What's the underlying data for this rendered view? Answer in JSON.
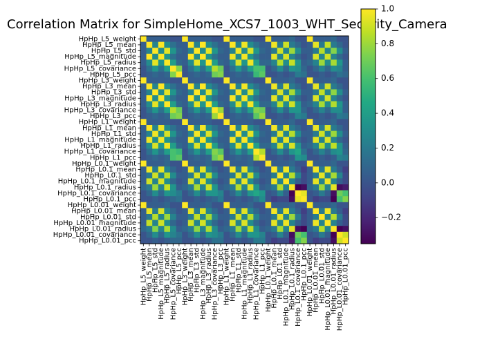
{
  "chart_data": {
    "type": "heatmap",
    "title": "Correlation Matrix for SimpleHome_XCS7_1003_WHT_Security_Camera",
    "labels": [
      "HpHp_L5_weight",
      "HpHp_L5_mean",
      "HpHp_L5_std",
      "HpHp_L5_magnitude",
      "HpHp_L5_radius",
      "HpHp_L5_covariance",
      "HpHp_L5_pcc",
      "HpHp_L3_weight",
      "HpHp_L3_mean",
      "HpHp_L3_std",
      "HpHp_L3_magnitude",
      "HpHp_L3_radius",
      "HpHp_L3_covariance",
      "HpHp_L3_pcc",
      "HpHp_L1_weight",
      "HpHp_L1_mean",
      "HpHp_L1_std",
      "HpHp_L1_magnitude",
      "HpHp_L1_radius",
      "HpHp_L1_covariance",
      "HpHp_L1_pcc",
      "HpHp_L0.1_weight",
      "HpHp_L0.1_mean",
      "HpHp_L0.1_std",
      "HpHp_L0.1_magnitude",
      "HpHp_L0.1_radius",
      "HpHp_L0.1_covariance",
      "HpHp_L0.1_pcc",
      "HpHp_L0.01_weight",
      "HpHp_L0.01_mean",
      "HpHp_L0.01_std",
      "HpHp_L0.01_magnitude",
      "HpHp_L0.01_radius",
      "HpHp_L0.01_covariance",
      "HpHp_L0.01_pcc"
    ],
    "values": [
      [
        1.0,
        0.05,
        0.05,
        0.05,
        0.05,
        0.0,
        0.0,
        1.0,
        0.05,
        0.05,
        0.05,
        0.05,
        0.0,
        0.0,
        1.0,
        0.05,
        0.05,
        0.05,
        0.05,
        0.0,
        0.0,
        1.0,
        0.05,
        0.05,
        0.05,
        0.1,
        0.0,
        0.0,
        1.0,
        0.05,
        0.05,
        0.05,
        0.1,
        0.0,
        0.0
      ],
      [
        0.05,
        1.0,
        0.25,
        1.0,
        0.3,
        0.15,
        0.05,
        0.05,
        1.0,
        0.25,
        1.0,
        0.3,
        0.15,
        0.05,
        0.05,
        1.0,
        0.25,
        0.97,
        0.3,
        0.15,
        0.05,
        0.05,
        0.97,
        0.2,
        0.9,
        0.2,
        0.1,
        0.0,
        0.05,
        0.95,
        0.2,
        0.88,
        0.2,
        0.1,
        0.0
      ],
      [
        0.05,
        0.25,
        1.0,
        0.3,
        0.95,
        0.35,
        0.1,
        0.05,
        0.25,
        1.0,
        0.3,
        0.95,
        0.35,
        0.1,
        0.05,
        0.25,
        0.97,
        0.3,
        0.92,
        0.35,
        0.1,
        0.05,
        0.2,
        0.9,
        0.25,
        0.8,
        0.3,
        0.05,
        0.05,
        0.2,
        0.85,
        0.25,
        0.75,
        0.3,
        0.05
      ],
      [
        0.05,
        1.0,
        0.3,
        1.0,
        0.35,
        0.15,
        0.05,
        0.05,
        1.0,
        0.3,
        1.0,
        0.35,
        0.15,
        0.05,
        0.05,
        0.97,
        0.3,
        0.98,
        0.35,
        0.15,
        0.05,
        0.05,
        0.95,
        0.25,
        0.92,
        0.25,
        0.1,
        0.0,
        0.05,
        0.92,
        0.25,
        0.9,
        0.25,
        0.1,
        0.0
      ],
      [
        0.05,
        0.3,
        0.95,
        0.35,
        1.0,
        0.4,
        0.1,
        0.05,
        0.3,
        0.95,
        0.35,
        1.0,
        0.4,
        0.1,
        0.05,
        0.3,
        0.92,
        0.35,
        0.97,
        0.4,
        0.1,
        0.1,
        0.25,
        0.85,
        0.3,
        0.88,
        0.35,
        0.05,
        0.1,
        0.25,
        0.8,
        0.3,
        0.82,
        0.35,
        0.05
      ],
      [
        0.0,
        0.15,
        0.35,
        0.15,
        0.4,
        1.0,
        0.75,
        0.0,
        0.15,
        0.35,
        0.15,
        0.4,
        0.85,
        0.7,
        0.0,
        0.15,
        0.35,
        0.15,
        0.4,
        0.6,
        0.6,
        0.0,
        0.1,
        0.3,
        0.1,
        0.35,
        0.3,
        0.1,
        0.0,
        0.1,
        0.25,
        0.1,
        0.3,
        0.25,
        0.05
      ],
      [
        0.0,
        0.05,
        0.1,
        0.05,
        0.1,
        0.75,
        1.0,
        0.0,
        0.05,
        0.1,
        0.05,
        0.1,
        0.7,
        0.75,
        0.0,
        0.05,
        0.1,
        0.05,
        0.1,
        0.55,
        0.65,
        0.0,
        0.0,
        0.05,
        0.0,
        0.05,
        0.2,
        0.15,
        0.0,
        0.0,
        0.05,
        0.0,
        0.05,
        0.15,
        0.1
      ],
      [
        1.0,
        0.05,
        0.05,
        0.05,
        0.05,
        0.0,
        0.0,
        1.0,
        0.05,
        0.05,
        0.05,
        0.05,
        0.0,
        0.0,
        1.0,
        0.05,
        0.05,
        0.05,
        0.05,
        0.0,
        0.0,
        1.0,
        0.05,
        0.05,
        0.05,
        0.1,
        0.0,
        0.0,
        1.0,
        0.05,
        0.05,
        0.05,
        0.1,
        0.0,
        0.0
      ],
      [
        0.05,
        1.0,
        0.25,
        1.0,
        0.3,
        0.15,
        0.05,
        0.05,
        1.0,
        0.25,
        1.0,
        0.3,
        0.15,
        0.05,
        0.05,
        1.0,
        0.25,
        0.98,
        0.3,
        0.15,
        0.05,
        0.05,
        0.97,
        0.2,
        0.92,
        0.2,
        0.1,
        0.0,
        0.05,
        0.95,
        0.2,
        0.9,
        0.2,
        0.1,
        0.0
      ],
      [
        0.05,
        0.25,
        1.0,
        0.3,
        0.95,
        0.35,
        0.1,
        0.05,
        0.25,
        1.0,
        0.3,
        0.95,
        0.35,
        0.1,
        0.05,
        0.25,
        0.98,
        0.3,
        0.93,
        0.35,
        0.1,
        0.05,
        0.2,
        0.92,
        0.25,
        0.82,
        0.3,
        0.05,
        0.05,
        0.2,
        0.87,
        0.25,
        0.77,
        0.3,
        0.05
      ],
      [
        0.05,
        1.0,
        0.3,
        1.0,
        0.35,
        0.15,
        0.05,
        0.05,
        1.0,
        0.3,
        1.0,
        0.35,
        0.15,
        0.05,
        0.05,
        0.98,
        0.3,
        0.99,
        0.35,
        0.15,
        0.05,
        0.05,
        0.95,
        0.25,
        0.94,
        0.25,
        0.1,
        0.0,
        0.05,
        0.93,
        0.25,
        0.91,
        0.25,
        0.1,
        0.0
      ],
      [
        0.05,
        0.3,
        0.95,
        0.35,
        1.0,
        0.4,
        0.1,
        0.05,
        0.3,
        0.95,
        0.35,
        1.0,
        0.4,
        0.1,
        0.05,
        0.3,
        0.93,
        0.35,
        0.98,
        0.4,
        0.1,
        0.1,
        0.25,
        0.87,
        0.3,
        0.9,
        0.35,
        0.05,
        0.1,
        0.25,
        0.82,
        0.3,
        0.84,
        0.35,
        0.05
      ],
      [
        0.0,
        0.15,
        0.35,
        0.15,
        0.4,
        0.85,
        0.7,
        0.0,
        0.15,
        0.35,
        0.15,
        0.4,
        1.0,
        0.8,
        0.0,
        0.15,
        0.35,
        0.15,
        0.4,
        0.75,
        0.7,
        0.0,
        0.1,
        0.3,
        0.1,
        0.35,
        0.35,
        0.1,
        0.0,
        0.1,
        0.25,
        0.1,
        0.3,
        0.3,
        0.05
      ],
      [
        0.0,
        0.05,
        0.1,
        0.05,
        0.1,
        0.7,
        0.75,
        0.0,
        0.05,
        0.1,
        0.05,
        0.1,
        0.8,
        1.0,
        0.0,
        0.05,
        0.1,
        0.05,
        0.1,
        0.65,
        0.8,
        0.0,
        0.0,
        0.05,
        0.0,
        0.05,
        0.25,
        0.2,
        0.0,
        0.0,
        0.05,
        0.0,
        0.05,
        0.2,
        0.15
      ],
      [
        1.0,
        0.05,
        0.05,
        0.05,
        0.05,
        0.0,
        0.0,
        1.0,
        0.05,
        0.05,
        0.05,
        0.05,
        0.0,
        0.0,
        1.0,
        0.05,
        0.05,
        0.05,
        0.05,
        0.0,
        0.0,
        1.0,
        0.05,
        0.05,
        0.05,
        0.1,
        0.0,
        0.0,
        1.0,
        0.05,
        0.05,
        0.05,
        0.1,
        0.0,
        0.0
      ],
      [
        0.05,
        1.0,
        0.25,
        0.97,
        0.3,
        0.15,
        0.05,
        0.05,
        1.0,
        0.25,
        0.98,
        0.3,
        0.15,
        0.05,
        0.05,
        1.0,
        0.25,
        0.98,
        0.3,
        0.15,
        0.05,
        0.05,
        0.98,
        0.2,
        0.94,
        0.2,
        0.1,
        0.0,
        0.05,
        0.96,
        0.2,
        0.92,
        0.2,
        0.1,
        0.0
      ],
      [
        0.05,
        0.25,
        0.97,
        0.3,
        0.92,
        0.35,
        0.1,
        0.05,
        0.25,
        0.98,
        0.3,
        0.93,
        0.35,
        0.1,
        0.05,
        0.25,
        1.0,
        0.3,
        0.95,
        0.35,
        0.1,
        0.05,
        0.2,
        0.94,
        0.25,
        0.85,
        0.3,
        0.05,
        0.05,
        0.2,
        0.9,
        0.25,
        0.8,
        0.3,
        0.05
      ],
      [
        0.05,
        0.97,
        0.3,
        0.98,
        0.35,
        0.15,
        0.05,
        0.05,
        0.98,
        0.3,
        0.99,
        0.35,
        0.15,
        0.05,
        0.05,
        0.98,
        0.3,
        1.0,
        0.35,
        0.15,
        0.05,
        0.05,
        0.96,
        0.25,
        0.96,
        0.25,
        0.1,
        0.0,
        0.05,
        0.94,
        0.25,
        0.93,
        0.25,
        0.1,
        0.0
      ],
      [
        0.05,
        0.3,
        0.92,
        0.35,
        0.97,
        0.4,
        0.1,
        0.05,
        0.3,
        0.93,
        0.35,
        0.98,
        0.4,
        0.1,
        0.05,
        0.3,
        0.95,
        0.35,
        1.0,
        0.4,
        0.1,
        0.1,
        0.25,
        0.9,
        0.3,
        0.92,
        0.35,
        0.05,
        0.1,
        0.25,
        0.85,
        0.3,
        0.87,
        0.35,
        0.05
      ],
      [
        0.0,
        0.15,
        0.35,
        0.15,
        0.4,
        0.6,
        0.55,
        0.0,
        0.15,
        0.35,
        0.15,
        0.4,
        0.75,
        0.65,
        0.0,
        0.15,
        0.35,
        0.15,
        0.4,
        1.0,
        0.85,
        0.0,
        0.1,
        0.3,
        0.1,
        0.35,
        0.45,
        0.15,
        0.0,
        0.1,
        0.25,
        0.1,
        0.3,
        0.35,
        0.1
      ],
      [
        0.0,
        0.05,
        0.1,
        0.05,
        0.1,
        0.6,
        0.65,
        0.0,
        0.05,
        0.1,
        0.05,
        0.1,
        0.7,
        0.8,
        0.0,
        0.05,
        0.1,
        0.05,
        0.1,
        0.85,
        1.0,
        0.0,
        0.0,
        0.05,
        0.0,
        0.05,
        0.35,
        0.3,
        0.0,
        0.0,
        0.05,
        0.0,
        0.05,
        0.25,
        0.2
      ],
      [
        1.0,
        0.05,
        0.05,
        0.05,
        0.1,
        0.0,
        0.0,
        1.0,
        0.05,
        0.05,
        0.05,
        0.1,
        0.0,
        0.0,
        1.0,
        0.05,
        0.05,
        0.05,
        0.1,
        0.0,
        0.0,
        1.0,
        0.05,
        0.05,
        0.05,
        0.1,
        0.0,
        0.0,
        1.0,
        0.05,
        0.05,
        0.05,
        0.1,
        0.0,
        0.0
      ],
      [
        0.05,
        0.97,
        0.2,
        0.95,
        0.25,
        0.1,
        0.0,
        0.05,
        0.97,
        0.2,
        0.95,
        0.25,
        0.1,
        0.0,
        0.05,
        0.98,
        0.2,
        0.96,
        0.25,
        0.1,
        0.0,
        0.05,
        1.0,
        0.2,
        0.97,
        0.2,
        0.05,
        -0.1,
        0.05,
        0.98,
        0.2,
        0.95,
        0.2,
        0.05,
        -0.1
      ],
      [
        0.05,
        0.2,
        0.9,
        0.25,
        0.85,
        0.3,
        0.05,
        0.05,
        0.2,
        0.92,
        0.25,
        0.87,
        0.3,
        0.05,
        0.05,
        0.2,
        0.94,
        0.25,
        0.9,
        0.3,
        0.05,
        0.05,
        0.2,
        1.0,
        0.25,
        0.85,
        0.25,
        -0.05,
        0.05,
        0.2,
        0.95,
        0.25,
        0.82,
        0.25,
        -0.05
      ],
      [
        0.05,
        0.9,
        0.25,
        0.92,
        0.3,
        0.1,
        0.0,
        0.05,
        0.92,
        0.25,
        0.94,
        0.3,
        0.1,
        0.0,
        0.05,
        0.94,
        0.25,
        0.96,
        0.3,
        0.1,
        0.0,
        0.05,
        0.97,
        0.25,
        1.0,
        0.25,
        0.05,
        -0.05,
        0.05,
        0.95,
        0.25,
        0.97,
        0.25,
        0.05,
        -0.05
      ],
      [
        0.1,
        0.2,
        0.8,
        0.25,
        0.88,
        0.35,
        0.05,
        0.1,
        0.2,
        0.82,
        0.25,
        0.9,
        0.35,
        0.05,
        0.1,
        0.2,
        0.85,
        0.25,
        0.92,
        0.35,
        0.05,
        0.1,
        0.2,
        0.85,
        0.25,
        1.0,
        -0.35,
        -0.3,
        0.1,
        0.2,
        0.8,
        0.25,
        0.95,
        -0.3,
        -0.25
      ],
      [
        0.0,
        0.1,
        0.3,
        0.1,
        0.35,
        0.3,
        0.2,
        0.0,
        0.1,
        0.3,
        0.1,
        0.35,
        0.35,
        0.25,
        0.0,
        0.1,
        0.3,
        0.1,
        0.35,
        0.45,
        0.35,
        0.0,
        0.05,
        0.25,
        0.05,
        -0.35,
        1.0,
        0.95,
        0.0,
        0.05,
        0.2,
        0.05,
        -0.3,
        0.7,
        0.6
      ],
      [
        0.0,
        0.0,
        0.05,
        0.0,
        0.05,
        0.1,
        0.15,
        0.0,
        0.0,
        0.05,
        0.0,
        0.05,
        0.1,
        0.2,
        0.0,
        0.0,
        0.05,
        0.0,
        0.05,
        0.15,
        0.3,
        0.0,
        -0.1,
        -0.05,
        -0.05,
        -0.3,
        0.95,
        1.0,
        0.0,
        -0.1,
        -0.05,
        -0.05,
        -0.35,
        0.6,
        0.75
      ],
      [
        1.0,
        0.05,
        0.05,
        0.05,
        0.1,
        0.0,
        0.0,
        1.0,
        0.05,
        0.05,
        0.05,
        0.1,
        0.0,
        0.0,
        1.0,
        0.05,
        0.05,
        0.05,
        0.1,
        0.0,
        0.0,
        1.0,
        0.05,
        0.05,
        0.05,
        0.1,
        0.0,
        0.0,
        1.0,
        0.05,
        0.05,
        0.05,
        0.1,
        0.0,
        0.0
      ],
      [
        0.05,
        0.95,
        0.2,
        0.92,
        0.25,
        0.1,
        0.0,
        0.05,
        0.95,
        0.2,
        0.93,
        0.25,
        0.1,
        0.0,
        0.05,
        0.96,
        0.2,
        0.94,
        0.25,
        0.1,
        0.0,
        0.05,
        0.98,
        0.2,
        0.95,
        0.2,
        0.05,
        -0.1,
        0.05,
        1.0,
        0.2,
        0.97,
        0.2,
        0.05,
        -0.1
      ],
      [
        0.05,
        0.2,
        0.85,
        0.25,
        0.8,
        0.25,
        0.05,
        0.05,
        0.2,
        0.87,
        0.25,
        0.82,
        0.25,
        0.05,
        0.05,
        0.2,
        0.9,
        0.25,
        0.85,
        0.25,
        0.05,
        0.05,
        0.2,
        0.95,
        0.25,
        0.8,
        0.2,
        -0.05,
        0.05,
        0.2,
        1.0,
        0.25,
        0.85,
        0.2,
        -0.05
      ],
      [
        0.05,
        0.88,
        0.25,
        0.9,
        0.3,
        0.1,
        0.0,
        0.05,
        0.9,
        0.25,
        0.91,
        0.3,
        0.1,
        0.0,
        0.05,
        0.92,
        0.25,
        0.93,
        0.3,
        0.1,
        0.0,
        0.05,
        0.95,
        0.25,
        0.97,
        0.25,
        0.05,
        -0.05,
        0.05,
        0.97,
        0.25,
        1.0,
        0.25,
        0.05,
        -0.05
      ],
      [
        0.1,
        0.2,
        0.75,
        0.25,
        0.82,
        0.3,
        0.05,
        0.1,
        0.2,
        0.77,
        0.25,
        0.84,
        0.3,
        0.05,
        0.1,
        0.2,
        0.8,
        0.25,
        0.87,
        0.3,
        0.05,
        0.1,
        0.2,
        0.82,
        0.25,
        0.95,
        -0.3,
        -0.35,
        0.1,
        0.2,
        0.85,
        0.25,
        1.0,
        -0.35,
        -0.3
      ],
      [
        0.0,
        0.1,
        0.3,
        0.1,
        0.35,
        0.25,
        0.15,
        0.0,
        0.1,
        0.3,
        0.1,
        0.35,
        0.3,
        0.2,
        0.0,
        0.1,
        0.3,
        0.1,
        0.35,
        0.35,
        0.25,
        0.0,
        0.05,
        0.25,
        0.05,
        -0.3,
        0.7,
        0.6,
        0.0,
        0.05,
        0.2,
        0.05,
        -0.35,
        1.0,
        0.9
      ],
      [
        0.0,
        0.0,
        0.05,
        0.0,
        0.05,
        0.1,
        0.1,
        0.0,
        0.0,
        0.05,
        0.0,
        0.05,
        0.15,
        0.15,
        0.0,
        0.0,
        0.05,
        0.0,
        0.05,
        0.2,
        0.2,
        0.0,
        -0.1,
        -0.05,
        -0.05,
        -0.25,
        0.6,
        0.75,
        0.0,
        -0.1,
        -0.05,
        -0.05,
        -0.3,
        0.9,
        1.0
      ]
    ],
    "colorbar": {
      "colormap": "viridis",
      "vmin": -0.35,
      "vmax": 1.0,
      "ticks": [
        -0.2,
        0.0,
        0.2,
        0.4,
        0.6,
        0.8,
        1.0
      ],
      "tick_labels": [
        "−0.2",
        "0.0",
        "0.2",
        "0.4",
        "0.6",
        "0.8",
        "1.0"
      ]
    }
  }
}
